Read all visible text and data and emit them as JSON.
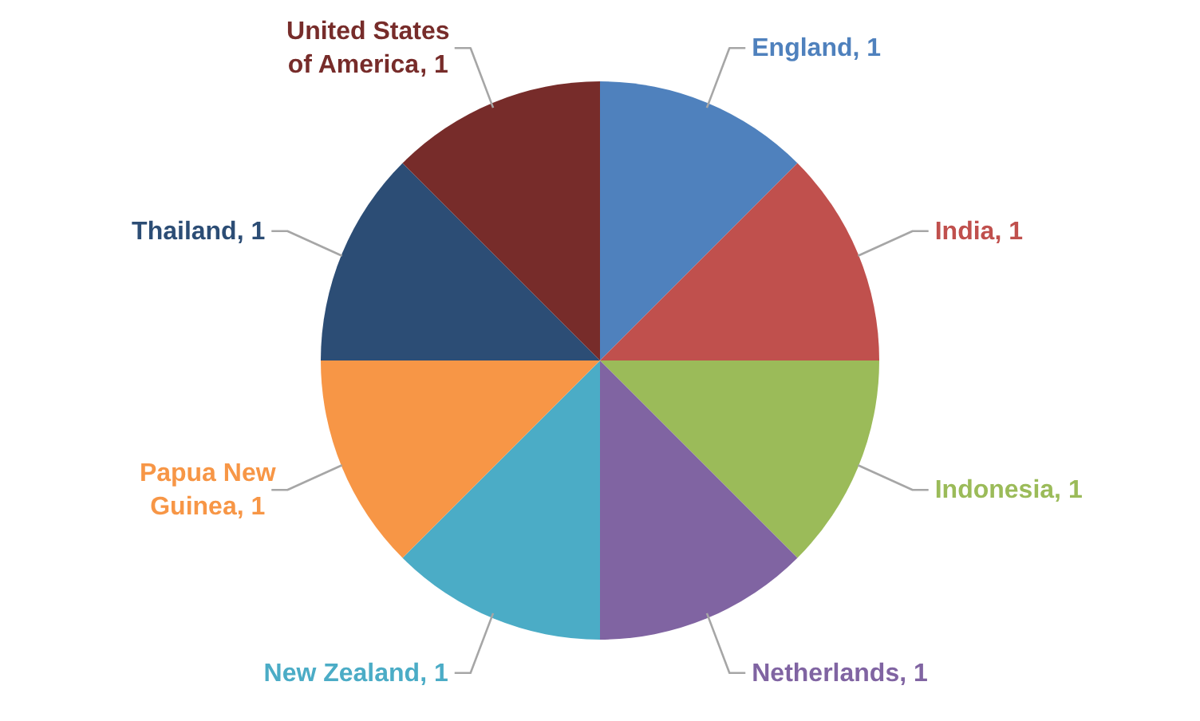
{
  "chart_data": {
    "type": "pie",
    "categories": [
      "England",
      "India",
      "Indonesia",
      "Netherlands",
      "New Zealand",
      "Papua New Guinea",
      "Thailand",
      "United States of America"
    ],
    "values": [
      1,
      1,
      1,
      1,
      1,
      1,
      1,
      1
    ],
    "colors": [
      "#4f81bd",
      "#c0504d",
      "#9bbb59",
      "#8064a2",
      "#4bacc6",
      "#f79646",
      "#2c4d75",
      "#772c2a"
    ],
    "value_labels": [
      ", 1",
      ", 1",
      ", 1",
      ", 1",
      ", 1",
      ", 1",
      ", 1",
      ", 1"
    ]
  }
}
